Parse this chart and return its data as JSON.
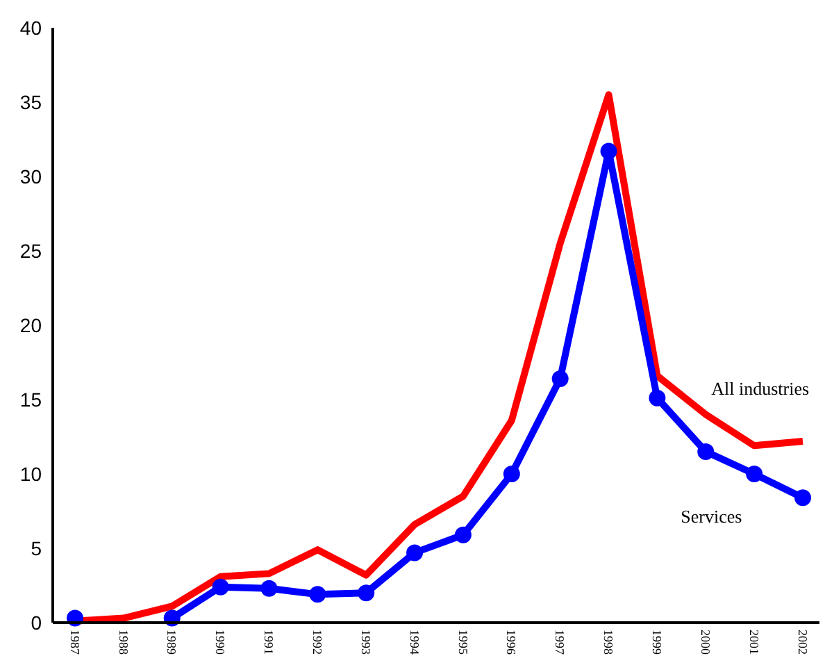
{
  "chart_data": {
    "type": "line",
    "categories": [
      "1987",
      "1988",
      "1989",
      "1990",
      "1991",
      "1992",
      "1993",
      "1994",
      "1995",
      "1996",
      "1997",
      "1998",
      "1999",
      "2000",
      "2001",
      "2002"
    ],
    "series": [
      {
        "name": "All industries",
        "color": "#ff0000",
        "marker": "none",
        "values": [
          0.1,
          0.3,
          1.1,
          3.1,
          3.3,
          4.9,
          3.2,
          6.6,
          8.5,
          13.6,
          25.5,
          35.5,
          16.6,
          14.0,
          11.9,
          12.2
        ]
      },
      {
        "name": "Services",
        "color": "#0000ff",
        "marker": "circle",
        "values": [
          0.3,
          null,
          0.3,
          2.4,
          2.3,
          1.9,
          2.0,
          4.7,
          5.9,
          10.0,
          16.4,
          31.7,
          15.1,
          11.5,
          10.0,
          8.4
        ]
      }
    ],
    "ylim": [
      0,
      40
    ],
    "yticks": [
      0,
      5,
      10,
      15,
      20,
      25,
      30,
      35,
      40
    ],
    "grid": false,
    "legend": false
  }
}
